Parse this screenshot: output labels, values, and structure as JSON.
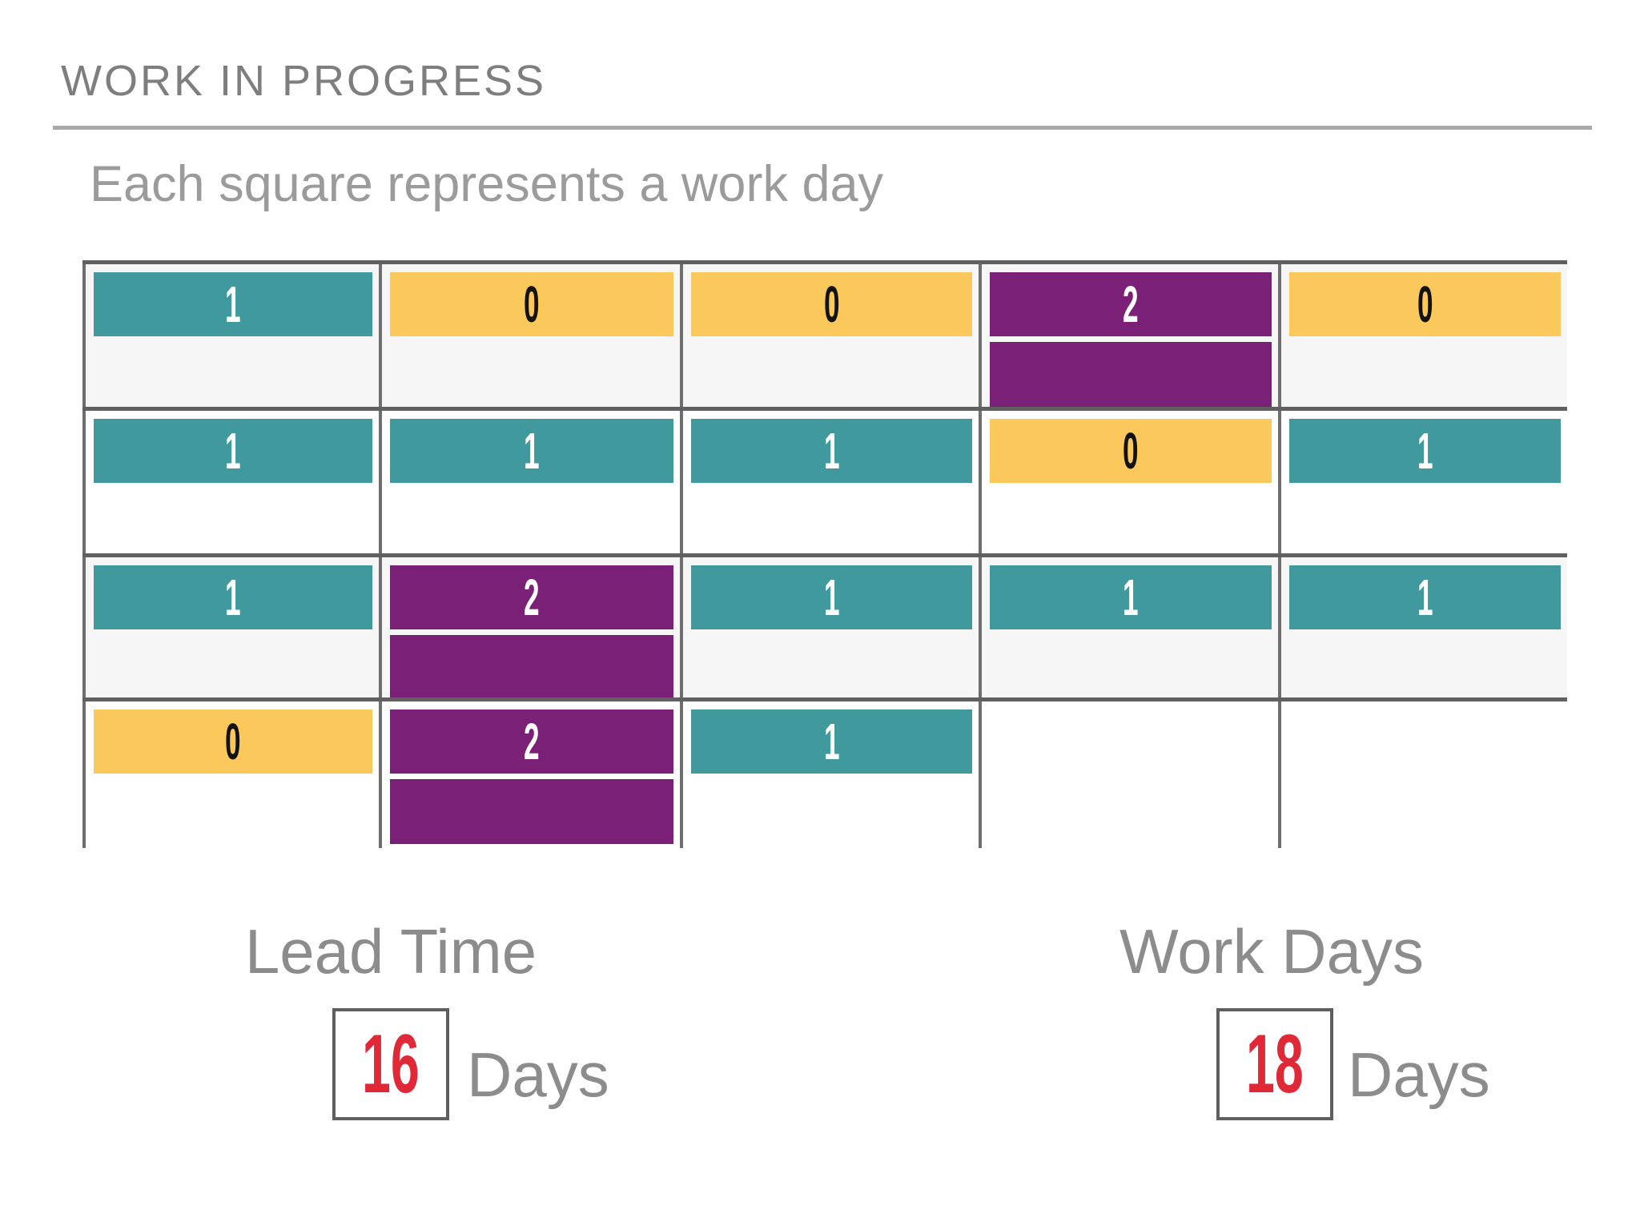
{
  "header": {
    "title": "WORK IN PROGRESS",
    "subtitle": "Each square represents a work day"
  },
  "chart_data": {
    "type": "heatmap",
    "title": "WORK IN PROGRESS",
    "subtitle": "Each square represents a work day",
    "rows": 4,
    "cols": 5,
    "cells": [
      [
        {
          "value": "1",
          "color": "teal",
          "bars": 1
        },
        {
          "value": "0",
          "color": "yellow",
          "bars": 1
        },
        {
          "value": "0",
          "color": "yellow",
          "bars": 1
        },
        {
          "value": "2",
          "color": "purple",
          "bars": 2
        },
        {
          "value": "0",
          "color": "yellow",
          "bars": 1
        }
      ],
      [
        {
          "value": "1",
          "color": "teal",
          "bars": 1
        },
        {
          "value": "1",
          "color": "teal",
          "bars": 1
        },
        {
          "value": "1",
          "color": "teal",
          "bars": 1
        },
        {
          "value": "0",
          "color": "yellow",
          "bars": 1
        },
        {
          "value": "1",
          "color": "teal",
          "bars": 1
        }
      ],
      [
        {
          "value": "1",
          "color": "teal",
          "bars": 1
        },
        {
          "value": "2",
          "color": "purple",
          "bars": 2
        },
        {
          "value": "1",
          "color": "teal",
          "bars": 1
        },
        {
          "value": "1",
          "color": "teal",
          "bars": 1
        },
        {
          "value": "1",
          "color": "teal",
          "bars": 1
        }
      ],
      [
        {
          "value": "0",
          "color": "yellow",
          "bars": 1
        },
        {
          "value": "2",
          "color": "purple",
          "bars": 2
        },
        {
          "value": "1",
          "color": "teal",
          "bars": 1
        },
        null,
        null
      ]
    ],
    "row_backgrounds": [
      "#F6F6F6",
      "#FFFFFF",
      "#F6F6F6",
      "#FFFFFF"
    ],
    "palette": {
      "teal": "#3F999D",
      "yellow": "#FBC95B",
      "purple": "#7A2076"
    },
    "value_text_colors": {
      "teal": "#FFFFFF",
      "yellow": "#131313",
      "purple": "#FFFFFF"
    }
  },
  "summary": {
    "value_color": "#E02937",
    "lead_time": {
      "label": "Lead Time",
      "value": "16",
      "unit": "Days"
    },
    "work_days": {
      "label": "Work Days",
      "value": "18",
      "unit": "Days"
    }
  }
}
